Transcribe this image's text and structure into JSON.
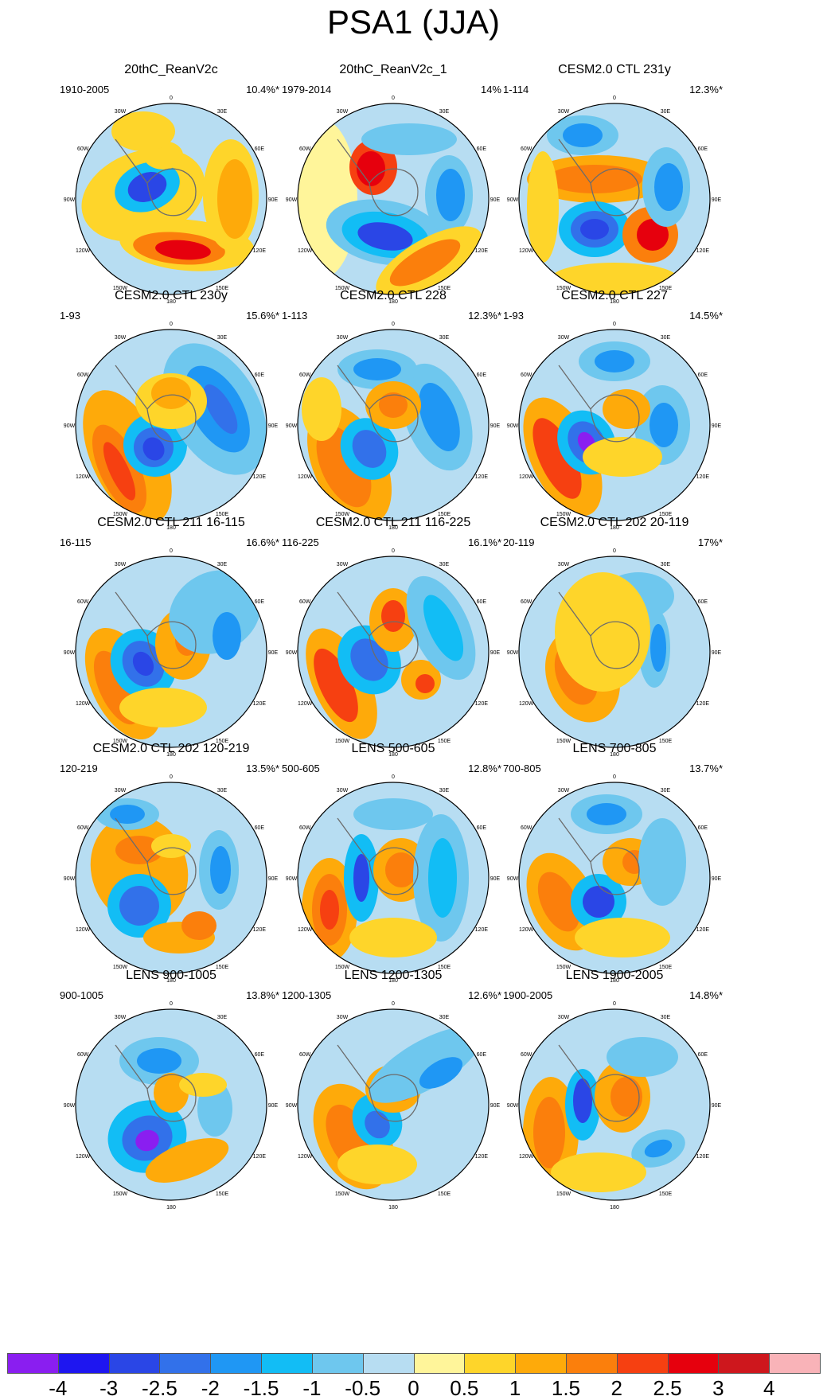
{
  "title": "PSA1 (JJA)",
  "map": {
    "lon_labels": [
      "0",
      "30E",
      "60E",
      "90E",
      "120E",
      "150E",
      "180",
      "150W",
      "120W",
      "90W",
      "60W",
      "30W"
    ]
  },
  "chart_data": {
    "type": "heatmap",
    "projection": "South polar stereographic",
    "colorbar": {
      "ticks": [
        "-4",
        "-3",
        "-2.5",
        "-2",
        "-1.5",
        "-1",
        "-0.5",
        "0",
        "0.5",
        "1",
        "1.5",
        "2",
        "2.5",
        "3",
        "4"
      ],
      "colors": [
        "#8a1ef0",
        "#1e16f0",
        "#2a46e6",
        "#3271ea",
        "#1f97f4",
        "#12bdf5",
        "#6ec7ee",
        "#b7ddf2",
        "#fff59a",
        "#fed52a",
        "#feaa0a",
        "#fb7f0c",
        "#f64011",
        "#e6000d",
        "#ce171d",
        "#f9b3b8"
      ]
    },
    "panels": [
      {
        "title": "20thC_ReanV2c",
        "period": "1910-2005",
        "pct": "10.4%*"
      },
      {
        "title": "20thC_ReanV2c_1",
        "period": "1979-2014",
        "pct": "14%"
      },
      {
        "title": "CESM2.0 CTL 231y",
        "period": "1-114",
        "pct": "12.3%*"
      },
      {
        "title": "CESM2.0 CTL 230y",
        "period": "1-93",
        "pct": "15.6%*"
      },
      {
        "title": "CESM2.0 CTL 228",
        "period": "1-113",
        "pct": "12.3%*"
      },
      {
        "title": "CESM2.0 CTL 227",
        "period": "1-93",
        "pct": "14.5%*"
      },
      {
        "title": "CESM2.0 CTL 211 16-115",
        "period": "16-115",
        "pct": "16.6%*"
      },
      {
        "title": "CESM2.0 CTL 211 116-225",
        "period": "116-225",
        "pct": "16.1%*"
      },
      {
        "title": "CESM2.0 CTL 202 20-119",
        "period": "20-119",
        "pct": "17%*"
      },
      {
        "title": "CESM2.0 CTL 202 120-219",
        "period": "120-219",
        "pct": "13.5%*"
      },
      {
        "title": "LENS 500-605",
        "period": "500-605",
        "pct": "12.8%*"
      },
      {
        "title": "LENS 700-805",
        "period": "700-805",
        "pct": "13.7%*"
      },
      {
        "title": "LENS 900-1005",
        "period": "900-1005",
        "pct": "13.8%*"
      },
      {
        "title": "LENS 1200-1305",
        "period": "1200-1305",
        "pct": "12.6%*"
      },
      {
        "title": "LENS 1900-2005",
        "period": "1900-2005",
        "pct": "14.8%*"
      }
    ]
  }
}
